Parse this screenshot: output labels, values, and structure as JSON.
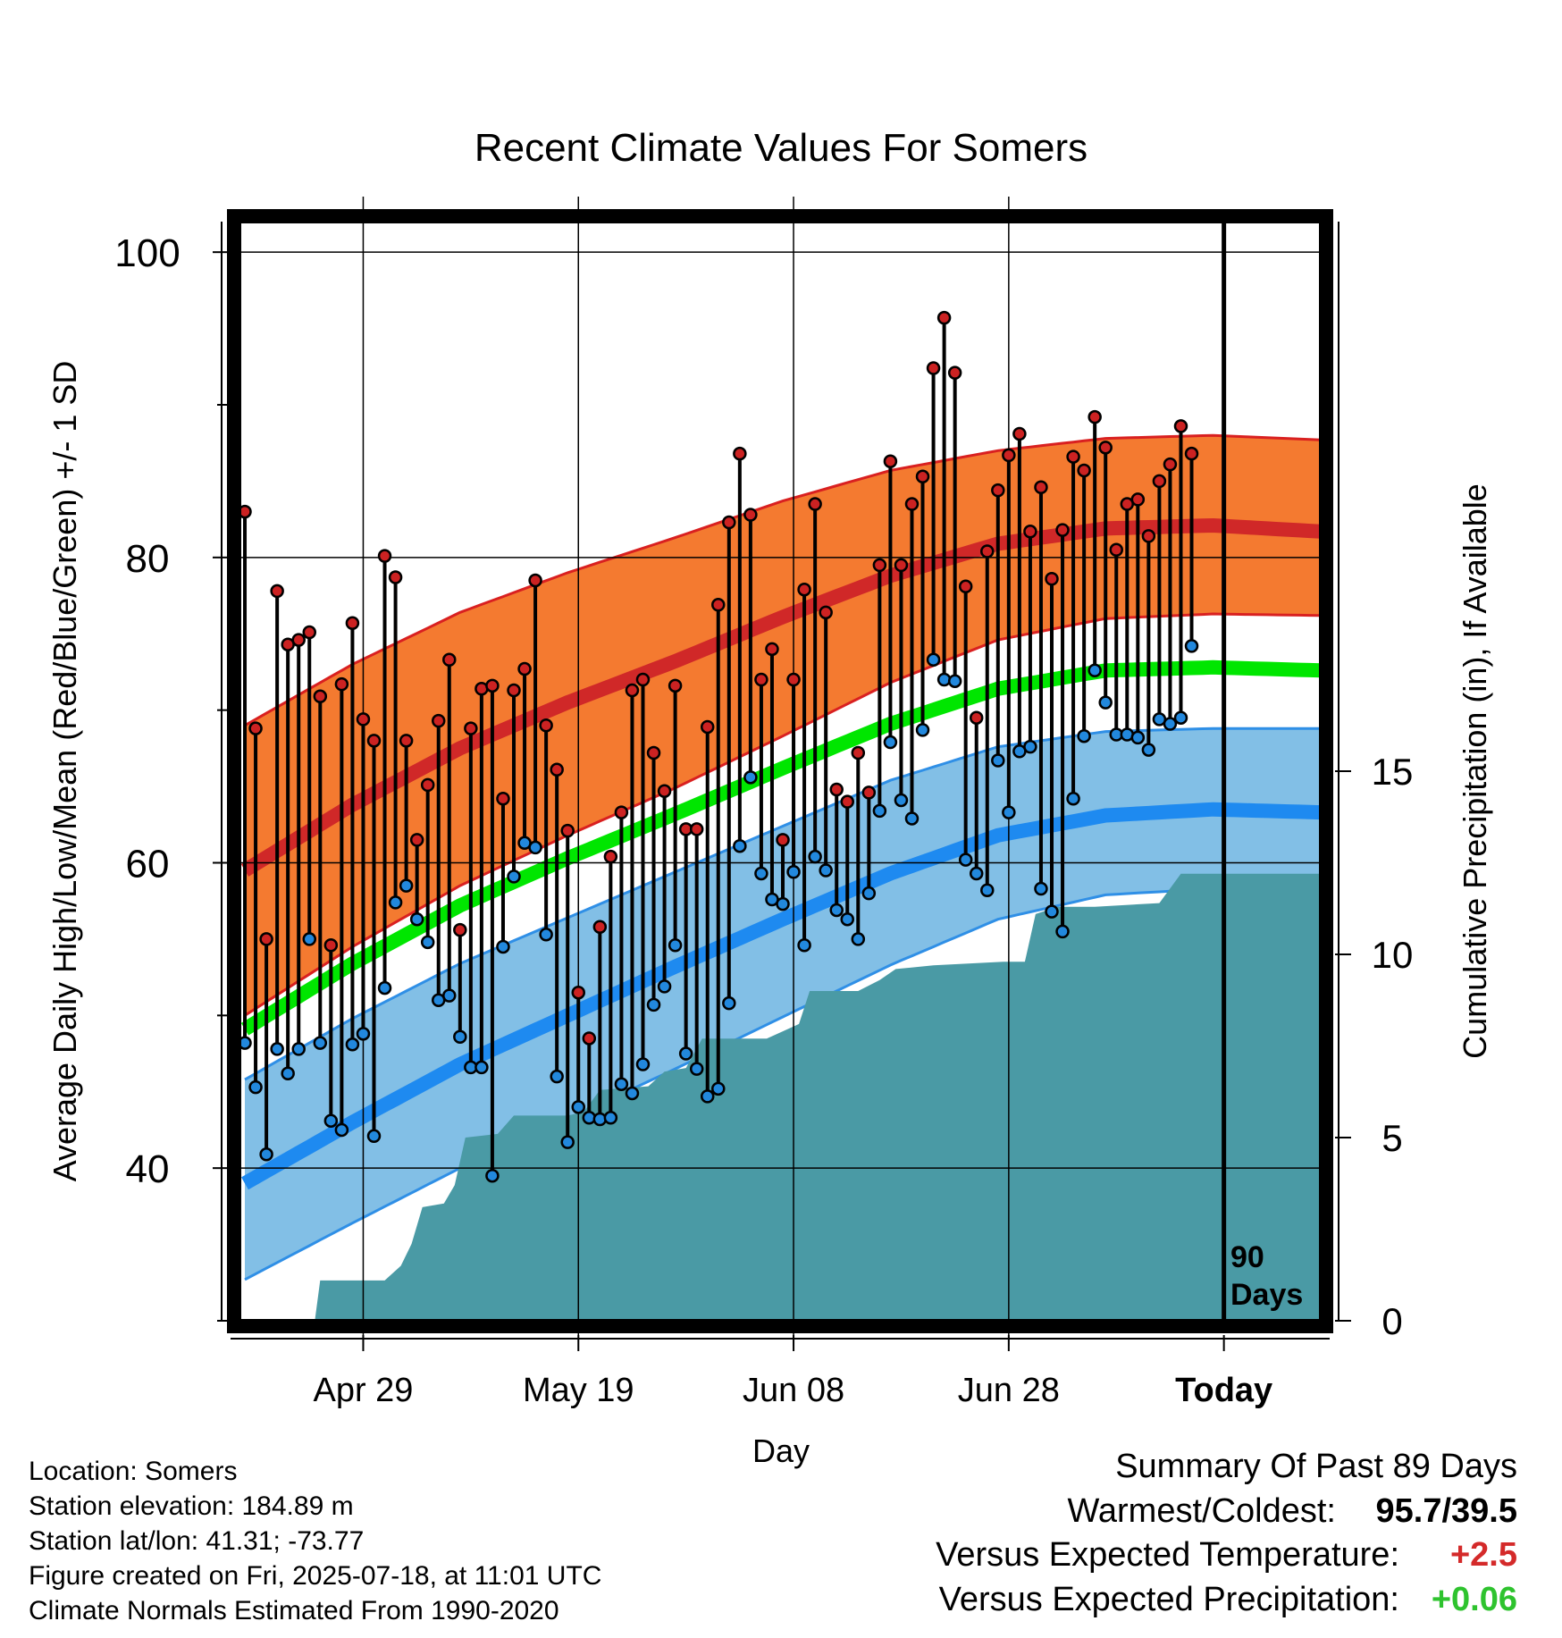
{
  "chart_data": {
    "type": "line",
    "title": "Recent Climate Values For Somers",
    "xlabel": "Day",
    "ylabel": "Average Daily High/Low/Mean (Red/Blue/Green) +/- 1 SD",
    "y2label": "Cumulative Precipitation (in), If Available",
    "ylim": [
      30,
      102
    ],
    "y2lim": [
      0,
      30
    ],
    "yticks": [
      100,
      80,
      60,
      40
    ],
    "y2ticks": [
      15,
      10,
      5,
      0
    ],
    "xtick_labels": [
      {
        "day": 11,
        "label": "Apr 29"
      },
      {
        "day": 31,
        "label": "May 19"
      },
      {
        "day": 51,
        "label": "Jun 08"
      },
      {
        "day": 71,
        "label": "Jun 28"
      },
      {
        "day": 91,
        "label": "Today"
      }
    ],
    "today_marker": {
      "day": 91,
      "label_line1": "90",
      "label_line2": "Days"
    },
    "normals": {
      "days": [
        0,
        10,
        20,
        30,
        40,
        50,
        60,
        70,
        80,
        90,
        100
      ],
      "high_mean": [
        59.5,
        63.8,
        67.5,
        70.5,
        73.2,
        76.1,
        78.8,
        80.9,
        81.9,
        82.1,
        81.7
      ],
      "high_upper": [
        69.0,
        73.0,
        76.4,
        79.0,
        81.3,
        83.7,
        85.7,
        87.0,
        87.8,
        88.0,
        87.7
      ],
      "high_lower": [
        50.0,
        54.5,
        58.5,
        61.8,
        64.9,
        68.3,
        71.8,
        74.6,
        76.0,
        76.3,
        76.2
      ],
      "mean": [
        49.1,
        53.4,
        57.2,
        60.3,
        63.2,
        66.2,
        69.1,
        71.4,
        72.6,
        72.8,
        72.6
      ],
      "low_mean": [
        39.0,
        43.0,
        46.8,
        50.0,
        53.2,
        56.3,
        59.3,
        61.8,
        63.1,
        63.5,
        63.3
      ],
      "low_upper": [
        45.8,
        49.8,
        53.4,
        56.4,
        59.4,
        62.4,
        65.4,
        67.6,
        68.6,
        68.8,
        68.8
      ],
      "low_lower": [
        32.7,
        36.4,
        40.0,
        43.2,
        46.5,
        49.9,
        53.3,
        56.3,
        57.9,
        58.3,
        58.3
      ]
    },
    "series": [
      {
        "name": "High",
        "color": "#cc2222",
        "values": [
          83.0,
          68.8,
          55.0,
          77.8,
          74.3,
          74.6,
          75.1,
          70.9,
          54.6,
          71.7,
          75.7,
          69.4,
          68.0,
          80.1,
          78.7,
          68.0,
          61.5,
          65.1,
          69.3,
          73.3,
          55.6,
          68.8,
          71.4,
          71.6,
          64.2,
          71.3,
          72.7,
          78.5,
          69.0,
          66.1,
          62.1,
          51.5,
          48.5,
          55.8,
          60.4,
          63.3,
          71.3,
          72.0,
          67.2,
          64.7,
          71.6,
          62.2,
          62.2,
          68.9,
          76.9,
          82.3,
          86.8,
          82.8,
          72.0,
          74.0,
          61.5,
          72.0,
          77.9,
          83.5,
          76.4,
          64.8,
          64.0,
          67.2,
          64.6,
          79.5,
          86.3,
          79.5,
          83.5,
          85.3,
          92.4,
          95.7,
          92.1,
          78.1,
          69.5,
          80.4,
          84.4,
          86.7,
          88.1,
          81.7,
          84.6,
          78.6,
          81.8,
          86.6,
          85.7,
          89.2,
          87.2,
          80.5,
          83.5,
          83.8,
          81.4,
          85.0,
          86.1,
          88.6,
          86.8
        ]
      },
      {
        "name": "Low",
        "color": "#2288dd",
        "values": [
          48.2,
          45.3,
          40.9,
          47.8,
          46.2,
          47.8,
          55.0,
          48.2,
          43.1,
          42.5,
          48.1,
          48.8,
          42.1,
          51.8,
          57.4,
          58.5,
          56.3,
          54.8,
          51.0,
          51.3,
          48.6,
          46.6,
          46.6,
          39.5,
          54.5,
          59.1,
          61.3,
          61.0,
          55.3,
          46.0,
          41.7,
          44.0,
          43.3,
          43.2,
          43.3,
          45.5,
          44.9,
          46.8,
          50.7,
          51.9,
          54.6,
          47.5,
          46.5,
          44.7,
          45.2,
          50.8,
          61.1,
          65.6,
          59.3,
          57.6,
          57.3,
          59.4,
          54.6,
          60.4,
          59.5,
          56.9,
          56.3,
          55.0,
          58.0,
          63.4,
          67.9,
          64.1,
          62.9,
          68.7,
          73.3,
          72.0,
          71.9,
          60.2,
          59.3,
          58.2,
          66.7,
          63.3,
          67.3,
          67.6,
          58.3,
          56.8,
          55.5,
          64.2,
          68.3,
          72.6,
          70.5,
          68.4,
          68.4,
          68.2,
          67.4,
          69.4,
          69.1,
          69.5,
          74.2
        ]
      }
    ],
    "precipitation": {
      "color": "#4a9aa5",
      "points": [
        [
          6.5,
          0
        ],
        [
          7.0,
          1.1
        ],
        [
          13.0,
          1.1
        ],
        [
          14.5,
          1.5
        ],
        [
          15.5,
          2.1
        ],
        [
          16.5,
          3.1
        ],
        [
          18.5,
          3.2
        ],
        [
          19.5,
          3.7
        ],
        [
          20.5,
          5.0
        ],
        [
          23.5,
          5.1
        ],
        [
          25.0,
          5.6
        ],
        [
          30.0,
          5.6
        ],
        [
          31.5,
          5.7
        ],
        [
          33.0,
          6.3
        ],
        [
          37.5,
          6.4
        ],
        [
          39.0,
          6.8
        ],
        [
          41.0,
          6.9
        ],
        [
          42.5,
          7.7
        ],
        [
          48.5,
          7.7
        ],
        [
          50.0,
          7.9
        ],
        [
          51.5,
          8.1
        ],
        [
          52.5,
          9.0
        ],
        [
          57.0,
          9.0
        ],
        [
          59.0,
          9.3
        ],
        [
          60.5,
          9.6
        ],
        [
          64.0,
          9.7
        ],
        [
          70.5,
          9.8
        ],
        [
          72.5,
          9.8
        ],
        [
          73.5,
          11.1
        ],
        [
          75.5,
          11.3
        ],
        [
          79.0,
          11.3
        ],
        [
          85.0,
          11.4
        ],
        [
          87.0,
          12.2
        ],
        [
          100.0,
          12.2
        ]
      ]
    }
  },
  "legend_info": {
    "left_lines": [
      "Location: Somers",
      "Station elevation: 184.89 m",
      "Station lat/lon: 41.31; -73.77",
      "Figure created on Fri, 2025-07-18, at 11:01 UTC",
      "Climate Normals Estimated From 1990-2020"
    ],
    "summary_title": "Summary Of Past 89 Days",
    "warmest_coldest_label": "Warmest/Coldest:",
    "warmest_coldest_value": "95.7/39.5",
    "temp_label": "Versus Expected Temperature:",
    "temp_value": "+2.5",
    "temp_color": "#d42a2a",
    "precip_label": "Versus Expected Precipitation:",
    "precip_value": "+0.06",
    "precip_color": "#2ec32e"
  }
}
